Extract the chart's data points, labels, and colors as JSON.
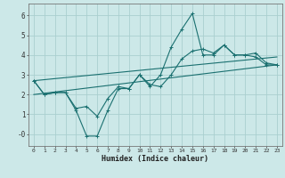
{
  "title": "",
  "xlabel": "Humidex (Indice chaleur)",
  "bg_color": "#cce8e8",
  "grid_color": "#aacfcf",
  "line_color": "#1a7070",
  "xlim": [
    -0.5,
    23.5
  ],
  "ylim": [
    -0.6,
    6.6
  ],
  "xticks": [
    0,
    1,
    2,
    3,
    4,
    5,
    6,
    7,
    8,
    9,
    10,
    11,
    12,
    13,
    14,
    15,
    16,
    17,
    18,
    19,
    20,
    21,
    22,
    23
  ],
  "yticks": [
    0,
    1,
    2,
    3,
    4,
    5,
    6
  ],
  "ytick_labels": [
    "-0",
    "1",
    "2",
    "3",
    "4",
    "5",
    "6"
  ],
  "line1": {
    "x": [
      0,
      1,
      2,
      3,
      4,
      5,
      6,
      7,
      8,
      9,
      10,
      11,
      12,
      13,
      14,
      15,
      16,
      17,
      18,
      19,
      20,
      21,
      22,
      23
    ],
    "y": [
      2.7,
      2.0,
      2.1,
      2.1,
      1.2,
      -0.1,
      -0.1,
      1.2,
      2.3,
      2.3,
      3.0,
      2.4,
      3.0,
      4.4,
      5.3,
      6.1,
      4.0,
      4.0,
      4.5,
      4.0,
      4.0,
      4.1,
      3.6,
      3.5
    ]
  },
  "line2": {
    "x": [
      0,
      1,
      2,
      3,
      4,
      5,
      6,
      7,
      8,
      9,
      10,
      11,
      12,
      13,
      14,
      15,
      16,
      17,
      18,
      19,
      20,
      21,
      22,
      23
    ],
    "y": [
      2.7,
      2.0,
      2.1,
      2.1,
      1.3,
      1.4,
      0.9,
      1.8,
      2.4,
      2.3,
      3.0,
      2.5,
      2.4,
      3.0,
      3.8,
      4.2,
      4.3,
      4.1,
      4.5,
      4.0,
      4.0,
      3.9,
      3.5,
      3.5
    ]
  },
  "line3": {
    "x": [
      0,
      23
    ],
    "y": [
      2.0,
      3.5
    ]
  },
  "line4": {
    "x": [
      0,
      23
    ],
    "y": [
      2.7,
      3.9
    ]
  }
}
